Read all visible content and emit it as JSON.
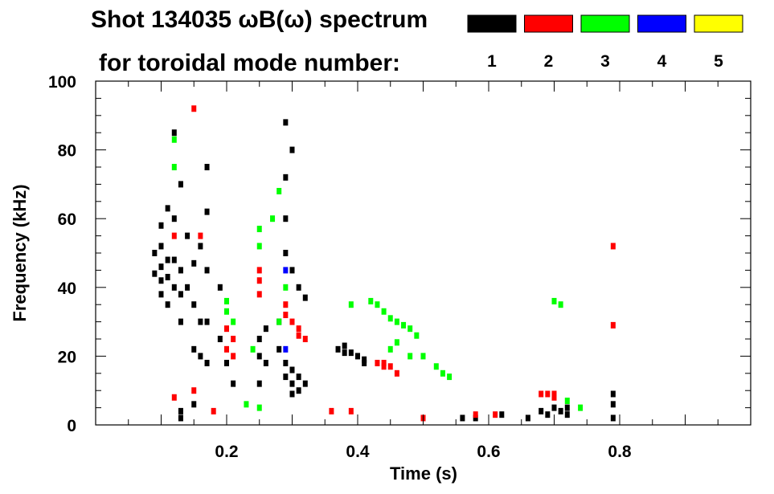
{
  "chart_data": {
    "type": "scatter",
    "title_line1": "Shot 134035 ωB(ω) spectrum",
    "title_line2": "for toroidal mode number:",
    "xlabel": "Time (s)",
    "ylabel": "Frequency (kHz)",
    "xlim": [
      0.0,
      1.0
    ],
    "ylim": [
      0,
      100
    ],
    "xticks": [
      0.2,
      0.4,
      0.6,
      0.8
    ],
    "xtick_labels": [
      "0.2",
      "0.4",
      "0.6",
      "0.8"
    ],
    "yticks": [
      0,
      20,
      40,
      60,
      80,
      100
    ],
    "ytick_labels": [
      "0",
      "20",
      "40",
      "60",
      "80",
      "100"
    ],
    "legend": [
      {
        "label": "1",
        "color": "#000000"
      },
      {
        "label": "2",
        "color": "#ff0000"
      },
      {
        "label": "3",
        "color": "#00ff00"
      },
      {
        "label": "4",
        "color": "#0000ff"
      },
      {
        "label": "5",
        "color": "#ffff00"
      }
    ],
    "series": [
      {
        "name": "1",
        "color": "#000000",
        "points": [
          [
            0.09,
            50
          ],
          [
            0.09,
            44
          ],
          [
            0.1,
            58
          ],
          [
            0.1,
            52
          ],
          [
            0.1,
            46
          ],
          [
            0.1,
            42
          ],
          [
            0.1,
            38
          ],
          [
            0.11,
            48
          ],
          [
            0.11,
            43
          ],
          [
            0.11,
            35
          ],
          [
            0.12,
            48
          ],
          [
            0.12,
            40
          ],
          [
            0.13,
            45
          ],
          [
            0.13,
            38
          ],
          [
            0.12,
            60
          ],
          [
            0.11,
            63
          ],
          [
            0.13,
            30
          ],
          [
            0.14,
            55
          ],
          [
            0.12,
            85
          ],
          [
            0.13,
            70
          ],
          [
            0.14,
            40
          ],
          [
            0.15,
            47
          ],
          [
            0.15,
            35
          ],
          [
            0.16,
            52
          ],
          [
            0.16,
            30
          ],
          [
            0.17,
            75
          ],
          [
            0.17,
            62
          ],
          [
            0.17,
            45
          ],
          [
            0.17,
            30
          ],
          [
            0.16,
            20
          ],
          [
            0.15,
            22
          ],
          [
            0.17,
            18
          ],
          [
            0.19,
            40
          ],
          [
            0.19,
            25
          ],
          [
            0.2,
            18
          ],
          [
            0.21,
            12
          ],
          [
            0.13,
            4
          ],
          [
            0.13,
            2
          ],
          [
            0.15,
            6
          ],
          [
            0.25,
            25
          ],
          [
            0.25,
            20
          ],
          [
            0.26,
            28
          ],
          [
            0.26,
            18
          ],
          [
            0.25,
            12
          ],
          [
            0.28,
            30
          ],
          [
            0.28,
            22
          ],
          [
            0.29,
            18
          ],
          [
            0.29,
            14
          ],
          [
            0.3,
            16
          ],
          [
            0.3,
            12
          ],
          [
            0.31,
            14
          ],
          [
            0.31,
            10
          ],
          [
            0.32,
            12
          ],
          [
            0.3,
            9
          ],
          [
            0.29,
            50
          ],
          [
            0.29,
            60
          ],
          [
            0.29,
            72
          ],
          [
            0.29,
            88
          ],
          [
            0.3,
            45
          ],
          [
            0.31,
            40
          ],
          [
            0.32,
            37
          ],
          [
            0.3,
            80
          ],
          [
            0.37,
            22
          ],
          [
            0.38,
            21
          ],
          [
            0.39,
            21
          ],
          [
            0.4,
            20
          ],
          [
            0.41,
            19
          ],
          [
            0.41,
            18
          ],
          [
            0.38,
            23
          ],
          [
            0.56,
            2
          ],
          [
            0.58,
            2
          ],
          [
            0.62,
            3
          ],
          [
            0.66,
            2
          ],
          [
            0.68,
            4
          ],
          [
            0.69,
            3
          ],
          [
            0.7,
            5
          ],
          [
            0.71,
            4
          ],
          [
            0.72,
            3
          ],
          [
            0.72,
            5
          ],
          [
            0.79,
            2
          ],
          [
            0.79,
            6
          ],
          [
            0.79,
            9
          ]
        ]
      },
      {
        "name": "2",
        "color": "#ff0000",
        "points": [
          [
            0.12,
            55
          ],
          [
            0.12,
            8
          ],
          [
            0.15,
            10
          ],
          [
            0.15,
            92
          ],
          [
            0.16,
            55
          ],
          [
            0.2,
            28
          ],
          [
            0.2,
            22
          ],
          [
            0.21,
            20
          ],
          [
            0.21,
            25
          ],
          [
            0.18,
            4
          ],
          [
            0.25,
            45
          ],
          [
            0.25,
            38
          ],
          [
            0.25,
            42
          ],
          [
            0.29,
            35
          ],
          [
            0.29,
            32
          ],
          [
            0.3,
            30
          ],
          [
            0.31,
            28
          ],
          [
            0.31,
            26
          ],
          [
            0.32,
            25
          ],
          [
            0.36,
            4
          ],
          [
            0.39,
            4
          ],
          [
            0.43,
            18
          ],
          [
            0.44,
            18
          ],
          [
            0.44,
            17
          ],
          [
            0.46,
            15
          ],
          [
            0.45,
            17
          ],
          [
            0.5,
            2
          ],
          [
            0.58,
            3
          ],
          [
            0.61,
            3
          ],
          [
            0.68,
            9
          ],
          [
            0.69,
            9
          ],
          [
            0.7,
            8
          ],
          [
            0.7,
            9
          ],
          [
            0.79,
            52
          ],
          [
            0.79,
            29
          ]
        ]
      },
      {
        "name": "3",
        "color": "#00ff00",
        "points": [
          [
            0.12,
            83
          ],
          [
            0.12,
            75
          ],
          [
            0.2,
            36
          ],
          [
            0.2,
            33
          ],
          [
            0.21,
            30
          ],
          [
            0.24,
            22
          ],
          [
            0.25,
            57
          ],
          [
            0.25,
            52
          ],
          [
            0.27,
            60
          ],
          [
            0.28,
            68
          ],
          [
            0.28,
            30
          ],
          [
            0.29,
            40
          ],
          [
            0.23,
            6
          ],
          [
            0.25,
            5
          ],
          [
            0.39,
            35
          ],
          [
            0.42,
            36
          ],
          [
            0.43,
            35
          ],
          [
            0.44,
            33
          ],
          [
            0.45,
            31
          ],
          [
            0.46,
            30
          ],
          [
            0.47,
            29
          ],
          [
            0.48,
            28
          ],
          [
            0.49,
            26
          ],
          [
            0.45,
            22
          ],
          [
            0.46,
            24
          ],
          [
            0.48,
            20
          ],
          [
            0.5,
            20
          ],
          [
            0.52,
            17
          ],
          [
            0.53,
            15
          ],
          [
            0.54,
            14
          ],
          [
            0.7,
            36
          ],
          [
            0.71,
            35
          ],
          [
            0.72,
            7
          ],
          [
            0.74,
            5
          ]
        ]
      },
      {
        "name": "4",
        "color": "#0000ff",
        "points": [
          [
            0.29,
            45
          ],
          [
            0.29,
            22
          ]
        ]
      },
      {
        "name": "5",
        "color": "#ffff00",
        "points": []
      }
    ]
  }
}
